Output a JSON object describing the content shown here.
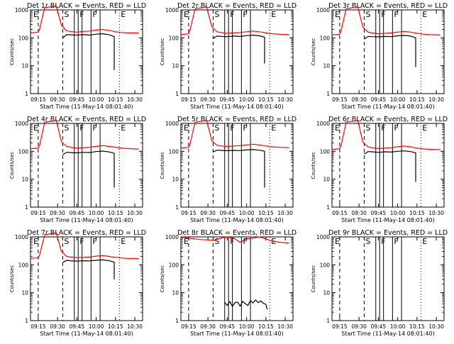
{
  "colors": {
    "events": "#000000",
    "lld": "#ff0000",
    "background": "#ffffff"
  },
  "shared": {
    "xlabel": "Start Time (11-May-14 08:01:40)",
    "ylabel": "Counts/sec",
    "xticks": [
      "09:15",
      "09:30",
      "09:45",
      "10:00",
      "10:15",
      "10:30"
    ],
    "yticks": [
      "1",
      "10",
      "100",
      "1000"
    ],
    "marker_labels": [
      "E",
      "S",
      "F",
      "F",
      "E"
    ]
  },
  "chart_data": [
    {
      "type": "line",
      "title": "Det 1r BLACK = Events, RED = LLD",
      "yscale": "log",
      "ylim": [
        1,
        1000
      ],
      "series": [
        {
          "name": "Events",
          "color": "#000000",
          "x": [
            "09:34",
            "09:37",
            "09:40",
            "09:45",
            "09:50",
            "09:55",
            "10:00",
            "10:05",
            "10:10",
            "10:14",
            "10:14"
          ],
          "values": [
            100,
            130,
            128,
            125,
            130,
            125,
            135,
            140,
            130,
            110,
            7
          ]
        },
        {
          "name": "LLD",
          "color": "#ff0000",
          "x": [
            "09:09",
            "09:15",
            "09:16",
            "09:20",
            "09:25",
            "09:29",
            "09:33",
            "09:37",
            "09:40",
            "09:45",
            "09:50",
            "09:55",
            "10:00",
            "10:05",
            "10:10",
            "10:15",
            "10:20",
            "10:25",
            "10:30",
            "10:33"
          ],
          "values": [
            150,
            160,
            200,
            1200,
            1300,
            1400,
            280,
            180,
            170,
            160,
            170,
            175,
            190,
            200,
            185,
            165,
            155,
            150,
            150,
            150
          ]
        }
      ]
    },
    {
      "type": "line",
      "title": "Det 2r BLACK = Events, RED = LLD",
      "yscale": "log",
      "ylim": [
        1,
        1000
      ],
      "series": [
        {
          "name": "Events",
          "color": "#000000",
          "x": [
            "09:34",
            "09:37",
            "09:40",
            "09:45",
            "09:50",
            "09:55",
            "10:00",
            "10:05",
            "10:10",
            "10:14",
            "10:14"
          ],
          "values": [
            95,
            115,
            112,
            110,
            115,
            112,
            120,
            125,
            118,
            105,
            12
          ]
        },
        {
          "name": "LLD",
          "color": "#ff0000",
          "x": [
            "09:09",
            "09:15",
            "09:16",
            "09:20",
            "09:25",
            "09:29",
            "09:33",
            "09:37",
            "09:40",
            "09:45",
            "09:50",
            "09:55",
            "10:00",
            "10:05",
            "10:10",
            "10:15",
            "10:20",
            "10:25",
            "10:30",
            "10:33"
          ],
          "values": [
            130,
            140,
            180,
            1100,
            1200,
            1300,
            250,
            165,
            155,
            145,
            150,
            155,
            165,
            175,
            165,
            150,
            140,
            135,
            132,
            130
          ]
        }
      ]
    },
    {
      "type": "line",
      "title": "Det 3r BLACK = Events, RED = LLD",
      "yscale": "log",
      "ylim": [
        1,
        1000
      ],
      "series": [
        {
          "name": "Events",
          "color": "#000000",
          "x": [
            "09:34",
            "09:37",
            "09:40",
            "09:45",
            "09:50",
            "09:55",
            "10:00",
            "10:05",
            "10:10",
            "10:14",
            "10:14"
          ],
          "values": [
            90,
            112,
            110,
            108,
            112,
            110,
            118,
            122,
            115,
            100,
            9
          ]
        },
        {
          "name": "LLD",
          "color": "#ff0000",
          "x": [
            "09:09",
            "09:15",
            "09:16",
            "09:20",
            "09:25",
            "09:29",
            "09:33",
            "09:37",
            "09:40",
            "09:45",
            "09:50",
            "09:55",
            "10:00",
            "10:05",
            "10:10",
            "10:15",
            "10:20",
            "10:25",
            "10:30",
            "10:33"
          ],
          "values": [
            125,
            135,
            175,
            1100,
            1200,
            1300,
            240,
            160,
            150,
            140,
            145,
            150,
            160,
            170,
            160,
            145,
            135,
            130,
            128,
            125
          ]
        }
      ]
    },
    {
      "type": "line",
      "title": "Det 4r BLACK = Events, RED = LLD",
      "yscale": "log",
      "ylim": [
        1,
        1000
      ],
      "series": [
        {
          "name": "Events",
          "color": "#000000",
          "x": [
            "09:34",
            "09:37",
            "09:40",
            "09:45",
            "09:50",
            "09:55",
            "10:00",
            "10:05",
            "10:10",
            "10:14",
            "10:14"
          ],
          "values": [
            75,
            92,
            90,
            88,
            92,
            90,
            98,
            102,
            95,
            85,
            5
          ]
        },
        {
          "name": "LLD",
          "color": "#ff0000",
          "x": [
            "09:09",
            "09:15",
            "09:16",
            "09:20",
            "09:25",
            "09:29",
            "09:33",
            "09:37",
            "09:40",
            "09:45",
            "09:50",
            "09:55",
            "10:00",
            "10:05",
            "10:10",
            "10:15",
            "10:20",
            "10:25",
            "10:30",
            "10:33"
          ],
          "values": [
            125,
            130,
            160,
            1100,
            1200,
            1300,
            220,
            150,
            140,
            130,
            135,
            140,
            150,
            160,
            150,
            140,
            130,
            125,
            122,
            120
          ]
        }
      ]
    },
    {
      "type": "line",
      "title": "Det 5r BLACK = Events, RED = LLD",
      "yscale": "log",
      "ylim": [
        1,
        1000
      ],
      "series": [
        {
          "name": "Events",
          "color": "#000000",
          "x": [
            "09:34",
            "09:37",
            "09:40",
            "09:45",
            "09:50",
            "09:55",
            "10:00",
            "10:05",
            "10:10",
            "10:14",
            "10:14"
          ],
          "values": [
            95,
            110,
            108,
            105,
            108,
            106,
            112,
            115,
            110,
            100,
            5
          ]
        },
        {
          "name": "LLD",
          "color": "#ff0000",
          "x": [
            "09:09",
            "09:15",
            "09:16",
            "09:20",
            "09:25",
            "09:29",
            "09:33",
            "09:37",
            "09:40",
            "09:45",
            "09:50",
            "09:55",
            "10:00",
            "10:05",
            "10:10",
            "10:15",
            "10:20",
            "10:25",
            "10:30",
            "10:33"
          ],
          "values": [
            130,
            140,
            175,
            1100,
            1200,
            1300,
            240,
            165,
            155,
            150,
            155,
            160,
            170,
            180,
            170,
            155,
            145,
            140,
            138,
            135
          ]
        }
      ]
    },
    {
      "type": "line",
      "title": "Det 6r BLACK = Events, RED = LLD",
      "yscale": "log",
      "ylim": [
        1,
        1000
      ],
      "series": [
        {
          "name": "Events",
          "color": "#000000",
          "x": [
            "09:34",
            "09:37",
            "09:40",
            "09:45",
            "09:50",
            "09:55",
            "10:00",
            "10:05",
            "10:10",
            "10:14",
            "10:14"
          ],
          "values": [
            80,
            98,
            96,
            92,
            96,
            94,
            100,
            104,
            98,
            88,
            8
          ]
        },
        {
          "name": "LLD",
          "color": "#ff0000",
          "x": [
            "09:09",
            "09:15",
            "09:16",
            "09:20",
            "09:25",
            "09:29",
            "09:33",
            "09:37",
            "09:40",
            "09:45",
            "09:50",
            "09:55",
            "10:00",
            "10:05",
            "10:10",
            "10:15",
            "10:20",
            "10:25",
            "10:30",
            "10:33"
          ],
          "values": [
            115,
            125,
            155,
            1100,
            1200,
            1300,
            210,
            145,
            135,
            125,
            130,
            135,
            145,
            155,
            145,
            130,
            122,
            118,
            116,
            115
          ]
        }
      ]
    },
    {
      "type": "line",
      "title": "Det 7r BLACK = Events, RED = LLD",
      "yscale": "log",
      "ylim": [
        1,
        1000
      ],
      "series": [
        {
          "name": "Events",
          "color": "#000000",
          "x": [
            "09:34",
            "09:37",
            "09:40",
            "09:45",
            "09:50",
            "09:55",
            "10:00",
            "10:05",
            "10:10",
            "10:14",
            "10:14"
          ],
          "values": [
            120,
            145,
            140,
            135,
            140,
            138,
            145,
            150,
            140,
            125,
            30
          ]
        },
        {
          "name": "LLD",
          "color": "#ff0000",
          "x": [
            "09:09",
            "09:15",
            "09:16",
            "09:20",
            "09:25",
            "09:29",
            "09:33",
            "09:37",
            "09:40",
            "09:45",
            "09:50",
            "09:55",
            "10:00",
            "10:05",
            "10:10",
            "10:15",
            "10:20",
            "10:25",
            "10:30",
            "10:33"
          ],
          "values": [
            170,
            180,
            220,
            1200,
            1300,
            1400,
            300,
            200,
            190,
            180,
            185,
            190,
            205,
            215,
            200,
            185,
            175,
            170,
            168,
            165
          ]
        }
      ]
    },
    {
      "type": "line",
      "title": "Det 8r BLACK = Events, RED = LLD",
      "yscale": "log",
      "ylim": [
        1,
        1000
      ],
      "series": [
        {
          "name": "Events",
          "color": "#000000",
          "x": [
            "09:43",
            "09:45",
            "09:47",
            "09:49",
            "09:51",
            "09:53",
            "09:55",
            "09:57",
            "09:59",
            "10:01",
            "10:03",
            "10:05",
            "10:07",
            "10:09",
            "10:11",
            "10:13",
            "10:15",
            "10:16"
          ],
          "values": [
            4.5,
            3.5,
            4.8,
            3.2,
            4.4,
            4.6,
            3.3,
            4.9,
            4,
            3.5,
            5.2,
            4.3,
            5.5,
            4.4,
            5.1,
            4.2,
            3.8,
            2.5
          ]
        },
        {
          "name": "LLD",
          "color": "#ff0000",
          "x": [
            "09:09",
            "09:15",
            "09:20",
            "09:25",
            "09:30",
            "09:35",
            "09:40",
            "09:45",
            "09:50",
            "09:55",
            "10:00",
            "10:05",
            "10:10",
            "10:15",
            "10:20",
            "10:25",
            "10:30",
            "10:33"
          ],
          "values": [
            1000,
            900,
            850,
            800,
            780,
            760,
            900,
            1000,
            900,
            650,
            850,
            900,
            1000,
            850,
            700,
            650,
            620,
            600
          ]
        }
      ]
    },
    {
      "type": "line",
      "title": "Det 9r BLACK = Events, RED = LLD",
      "yscale": "log",
      "ylim": [
        1,
        1000
      ],
      "series": []
    }
  ]
}
